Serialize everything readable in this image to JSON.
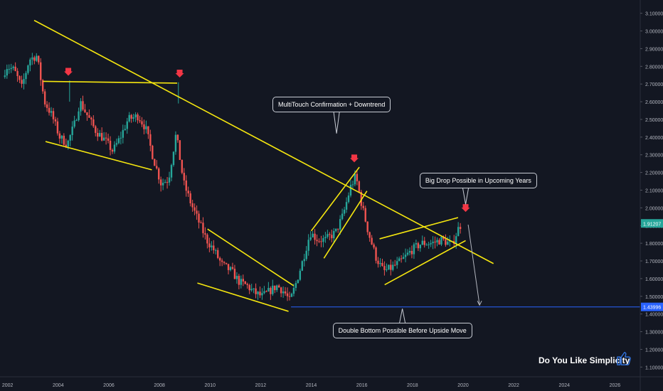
{
  "chart_data": {
    "type": "candlestick",
    "title": "",
    "xlabel": "",
    "ylabel": "",
    "x_ticks": [
      "2002",
      "2004",
      "2006",
      "2008",
      "2010",
      "2012",
      "2014",
      "2016",
      "2018",
      "2020",
      "2022",
      "2024",
      "2026"
    ],
    "y_ticks": [
      "3.10000",
      "3.00000",
      "2.90000",
      "2.80000",
      "2.70000",
      "2.60000",
      "2.50000",
      "2.40000",
      "2.30000",
      "2.20000",
      "2.10000",
      "2.00000",
      "1.90000",
      "1.80000",
      "1.70000",
      "1.60000",
      "1.50000",
      "1.40000",
      "1.30000",
      "1.20000",
      "1.10000"
    ],
    "xlim": [
      2001.7,
      2027.0
    ],
    "ylim": [
      1.045,
      3.175
    ],
    "grid": false,
    "price_anchors": [
      [
        2001.85,
        2.74
      ],
      [
        2002.0,
        2.8
      ],
      [
        2002.3,
        2.78
      ],
      [
        2002.6,
        2.68
      ],
      [
        2002.9,
        2.84
      ],
      [
        2003.2,
        2.86
      ],
      [
        2003.5,
        2.6
      ],
      [
        2003.8,
        2.52
      ],
      [
        2004.1,
        2.4
      ],
      [
        2004.4,
        2.36
      ],
      [
        2004.7,
        2.48
      ],
      [
        2004.9,
        2.6
      ],
      [
        2005.2,
        2.52
      ],
      [
        2005.5,
        2.44
      ],
      [
        2005.9,
        2.38
      ],
      [
        2006.2,
        2.32
      ],
      [
        2006.5,
        2.4
      ],
      [
        2006.8,
        2.5
      ],
      [
        2007.2,
        2.52
      ],
      [
        2007.5,
        2.45
      ],
      [
        2007.8,
        2.28
      ],
      [
        2008.1,
        2.14
      ],
      [
        2008.4,
        2.16
      ],
      [
        2008.7,
        2.42
      ],
      [
        2009.0,
        2.14
      ],
      [
        2009.3,
        2.02
      ],
      [
        2009.6,
        1.92
      ],
      [
        2009.9,
        1.82
      ],
      [
        2010.2,
        1.76
      ],
      [
        2010.5,
        1.68
      ],
      [
        2010.9,
        1.64
      ],
      [
        2011.2,
        1.58
      ],
      [
        2011.5,
        1.56
      ],
      [
        2011.8,
        1.52
      ],
      [
        2012.1,
        1.5
      ],
      [
        2012.4,
        1.53
      ],
      [
        2012.7,
        1.56
      ],
      [
        2013.0,
        1.52
      ],
      [
        2013.2,
        1.47
      ],
      [
        2013.45,
        1.58
      ],
      [
        2013.7,
        1.7
      ],
      [
        2014.0,
        1.86
      ],
      [
        2014.3,
        1.82
      ],
      [
        2014.6,
        1.82
      ],
      [
        2015.0,
        1.86
      ],
      [
        2015.3,
        1.96
      ],
      [
        2015.6,
        2.12
      ],
      [
        2015.8,
        2.18
      ],
      [
        2016.0,
        2.04
      ],
      [
        2016.3,
        1.86
      ],
      [
        2016.6,
        1.72
      ],
      [
        2016.9,
        1.64
      ],
      [
        2017.2,
        1.66
      ],
      [
        2017.6,
        1.7
      ],
      [
        2018.0,
        1.76
      ],
      [
        2018.4,
        1.8
      ],
      [
        2018.8,
        1.8
      ],
      [
        2019.2,
        1.82
      ],
      [
        2019.6,
        1.79
      ],
      [
        2019.9,
        1.9
      ]
    ],
    "trend_lines": [
      {
        "points": [
          [
            2003.05,
            3.06
          ],
          [
            2021.2,
            1.685
          ]
        ]
      },
      {
        "points": [
          [
            2003.4,
            2.715
          ],
          [
            2008.7,
            2.705
          ]
        ]
      },
      {
        "points": [
          [
            2003.5,
            2.375
          ],
          [
            2007.7,
            2.215
          ]
        ]
      },
      {
        "points": [
          [
            2009.9,
            1.88
          ],
          [
            2013.3,
            1.56
          ]
        ]
      },
      {
        "points": [
          [
            2009.5,
            1.575
          ],
          [
            2013.1,
            1.415
          ]
        ]
      },
      {
        "points": [
          [
            2014.0,
            1.87
          ],
          [
            2015.9,
            2.23
          ]
        ]
      },
      {
        "points": [
          [
            2014.5,
            1.715
          ],
          [
            2016.2,
            2.095
          ]
        ]
      },
      {
        "points": [
          [
            2016.7,
            1.825
          ],
          [
            2019.8,
            1.945
          ]
        ]
      },
      {
        "points": [
          [
            2016.9,
            1.565
          ],
          [
            2020.1,
            1.815
          ]
        ]
      }
    ],
    "level_line": {
      "y": 1.43996,
      "from": 2013.2
    },
    "price_label": "1.91207",
    "level_label": "1.43996",
    "arrow_markers": [
      2004.4,
      2008.8,
      2015.7,
      2020.1
    ],
    "projection_arrow": {
      "from": [
        2020.2,
        1.905
      ],
      "to": [
        2020.65,
        1.45
      ]
    },
    "annotations": [
      {
        "text": "MultiTouch Confirmation + Downtrend",
        "anchor": [
          2015.0,
          2.42
        ],
        "box_center": [
          2014.8,
          2.585
        ]
      },
      {
        "text": "Big Drop Possible in Upcoming Years",
        "anchor": [
          2020.1,
          2.02
        ],
        "box_center": [
          2020.6,
          2.155
        ]
      },
      {
        "text": "Double Bottom Possible Before Upside Move",
        "anchor": [
          2017.6,
          1.43
        ],
        "box_center": [
          2017.6,
          1.305
        ]
      }
    ]
  },
  "branding": {
    "slogan": "Do You Like Simplicity",
    "thumb_icon": "thumbs-up-icon",
    "accent_yellow": "#f5e60f",
    "up_color": "#26a69a",
    "down_color": "#ef5350",
    "level_color": "#2962ff"
  }
}
